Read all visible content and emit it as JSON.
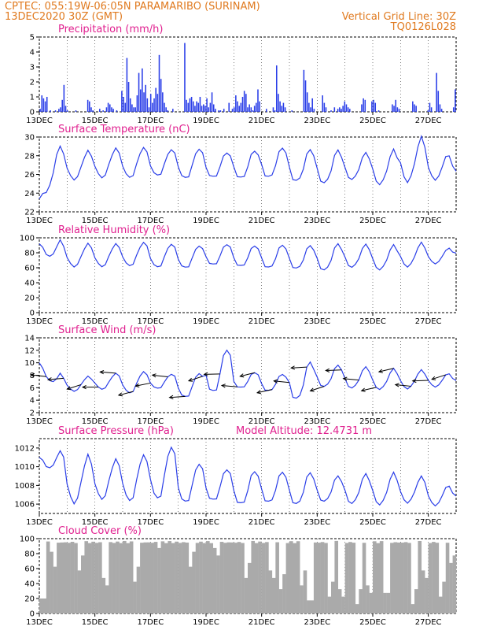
{
  "header": {
    "line1": "CPTEC:   055:19W-06:05N  PARAMARIBO (SURINAM)",
    "line2": "13DEC2020 30Z (GMT)",
    "grid_note": "Vertical Grid Line: 30Z",
    "code": "TQ0126L028"
  },
  "colors": {
    "header": "#e07a1f",
    "title": "#e0208f",
    "series": "#2a3ee8",
    "cloud": "#aaaaaa"
  },
  "chart_data": [
    {
      "id": "precip",
      "type": "bar",
      "title": "Precipitation (mm/h)",
      "ylim": [
        0,
        5
      ],
      "yticks": [
        0,
        1,
        2,
        3,
        4,
        5
      ],
      "xticks": [
        "13DEC",
        "15DEC",
        "17DEC",
        "19DEC",
        "21DEC",
        "23DEC",
        "25DEC",
        "27DEC"
      ],
      "x_start": 13.0,
      "x_end": 28.0,
      "step_days": 0.125,
      "values": [
        0.2,
        1.1,
        0.9,
        0.7,
        1.0,
        0.0,
        0.1,
        0.0,
        0.0,
        0.1,
        0.0,
        0.2,
        0.3,
        0.8,
        1.8,
        0.4,
        0.1,
        0.0,
        0.0,
        0.0,
        0.0,
        0.1,
        0.0,
        0.0,
        0.0,
        0.0,
        0.0,
        0.0,
        0.8,
        0.7,
        0.3,
        0.1,
        0.0,
        0.0,
        0.0,
        0.2,
        0.0,
        0.1,
        0.0,
        0.3,
        0.6,
        0.5,
        0.3,
        0.2,
        0.0,
        0.1,
        0.0,
        0.0,
        1.4,
        1.0,
        0.6,
        3.6,
        2.0,
        0.9,
        0.5,
        0.3,
        0.3,
        1.1,
        2.6,
        1.5,
        2.9,
        1.3,
        1.8,
        0.9,
        0.3,
        1.2,
        0.6,
        0.9,
        1.6,
        1.2,
        3.8,
        2.2,
        1.3,
        0.6,
        0.3,
        0.1,
        0.0,
        0.0,
        0.2,
        0.0,
        0.0,
        0.0,
        0.0,
        0.0,
        0.0,
        4.6,
        0.8,
        0.6,
        0.9,
        1.0,
        0.7,
        0.4,
        0.7,
        0.6,
        1.0,
        0.4,
        0.5,
        0.4,
        0.9,
        0.3,
        0.6,
        1.3,
        0.5,
        0.2,
        0.0,
        0.1,
        0.1,
        0.0,
        0.2,
        0.0,
        0.0,
        0.6,
        0.0,
        0.2,
        0.3,
        1.1,
        0.7,
        0.4,
        0.6,
        1.0,
        1.4,
        1.2,
        0.3,
        0.5,
        0.3,
        0.1,
        0.4,
        0.6,
        1.5,
        0.7,
        0.0,
        0.0,
        0.0,
        0.2,
        0.0,
        0.0,
        0.0,
        0.3,
        0.1,
        3.1,
        1.2,
        0.7,
        0.4,
        0.6,
        0.3,
        0.0,
        0.0,
        0.0,
        0.1,
        0.0,
        0.0,
        0.0,
        0.0,
        0.0,
        0.0,
        2.8,
        2.1,
        1.3,
        0.6,
        0.3,
        0.9,
        0.2,
        0.0,
        0.0,
        0.0,
        0.0,
        1.1,
        0.6,
        0.3,
        0.0,
        0.0,
        0.1,
        0.0,
        0.3,
        0.0,
        0.2,
        0.3,
        0.2,
        0.4,
        0.7,
        0.5,
        0.3,
        0.2,
        0.0,
        0.0,
        0.0,
        0.0,
        0.0,
        0.0,
        0.5,
        0.9,
        0.8,
        0.0,
        0.0,
        0.0,
        0.7,
        0.8,
        0.6,
        0.0,
        0.1,
        0.0,
        0.0,
        0.0,
        0.0,
        0.0,
        0.0,
        0.0,
        0.5,
        0.4,
        0.8,
        0.3,
        0.2,
        0.0,
        0.0,
        0.0,
        0.0,
        0.0,
        0.0,
        0.0,
        0.7,
        0.5,
        0.4,
        0.0,
        0.0,
        0.0,
        0.0,
        0.0,
        0.0,
        0.1,
        0.6,
        0.3,
        0.0,
        0.0,
        2.6,
        1.4,
        0.5,
        0.2,
        0.0,
        0.0,
        0.0,
        0.0,
        0.0,
        0.0,
        0.3,
        1.5
      ]
    },
    {
      "id": "temp",
      "type": "line",
      "title": "Surface Temperature (nC)",
      "ylim": [
        22,
        30
      ],
      "yticks": [
        22,
        24,
        26,
        28,
        30
      ],
      "xticks": [
        "13DEC",
        "15DEC",
        "17DEC",
        "19DEC",
        "21DEC",
        "23DEC",
        "25DEC",
        "27DEC"
      ],
      "x_start": 13.0,
      "x_end": 28.0,
      "peaks": [
        28.9,
        28.5,
        28.8,
        28.9,
        28.7,
        28.8,
        28.4,
        28.6,
        28.9,
        28.7,
        28.6,
        28.3,
        28.6,
        29.9,
        28.6
      ],
      "troughs": [
        25.4,
        25.5,
        25.7,
        25.7,
        25.9,
        25.6,
        25.7,
        25.6,
        25.7,
        25.3,
        25.1,
        25.5,
        25.0,
        25.3,
        25.5
      ],
      "start_value": 23.4,
      "end_value": 26.4
    },
    {
      "id": "rh",
      "type": "line",
      "title": "Relative Humidity (%)",
      "ylim": [
        0,
        100
      ],
      "yticks": [
        0,
        20,
        40,
        60,
        80,
        100
      ],
      "xticks": [
        "13DEC",
        "15DEC",
        "17DEC",
        "19DEC",
        "21DEC",
        "23DEC",
        "25DEC",
        "27DEC"
      ],
      "x_start": 13.0,
      "x_end": 28.0,
      "peaks": [
        96,
        92,
        92,
        94,
        92,
        90,
        92,
        90,
        91,
        90,
        92,
        91,
        90,
        93,
        88
      ],
      "troughs": [
        60,
        62,
        62,
        63,
        61,
        60,
        64,
        62,
        60,
        59,
        57,
        61,
        58,
        62,
        66
      ],
      "start_value": 92,
      "end_value": 80
    },
    {
      "id": "wind",
      "type": "line",
      "title": "Surface Wind (m/s)",
      "ylim": [
        2,
        14
      ],
      "yticks": [
        2,
        4,
        6,
        8,
        10,
        12,
        14
      ],
      "xticks": [
        "13DEC",
        "15DEC",
        "17DEC",
        "19DEC",
        "21DEC",
        "23DEC",
        "25DEC",
        "27DEC"
      ],
      "x_start": 13.0,
      "x_end": 28.0,
      "peaks": [
        8.2,
        7.8,
        8.3,
        8.6,
        8.2,
        8.4,
        12.3,
        8.5,
        8.2,
        10.2,
        9.6,
        9.3,
        9.0,
        8.8,
        8.6
      ],
      "troughs": [
        4.8,
        5.5,
        5.8,
        5.2,
        5.9,
        4.5,
        5.3,
        6.0,
        5.5,
        4.2,
        6.2,
        6.0,
        5.8,
        5.9,
        6.2
      ],
      "start_value": 10.0,
      "end_value": 7.2,
      "barbs_note": "wind vectors drawn as arrows along the series"
    },
    {
      "id": "pres",
      "type": "line",
      "title": "Surface Pressure (hPa)",
      "annotation": "Model Altitude: 12.4731 m",
      "ylim": [
        1005,
        1013
      ],
      "yticks": [
        1006,
        1008,
        1010,
        1012
      ],
      "xticks": [
        "13DEC",
        "15DEC",
        "17DEC",
        "19DEC",
        "21DEC",
        "23DEC",
        "25DEC",
        "27DEC"
      ],
      "x_start": 13.0,
      "x_end": 28.0,
      "peaks": [
        1011.6,
        1011.2,
        1010.8,
        1011.3,
        1012.2,
        1010.4,
        1009.8,
        1009.6,
        1009.5,
        1009.4,
        1009.0,
        1009.2,
        1009.3,
        1008.9,
        1008.3
      ],
      "troughs": [
        1008.8,
        1006.2,
        1006.6,
        1006.4,
        1006.6,
        1006.2,
        1006.4,
        1006.0,
        1006.2,
        1006.0,
        1006.3,
        1006.1,
        1006.0,
        1006.2,
        1005.9
      ],
      "start_value": 1011.0,
      "end_value": 1006.9
    },
    {
      "id": "cloud",
      "type": "area",
      "title": "Cloud Cover (%)",
      "ylim": [
        0,
        100
      ],
      "yticks": [
        0,
        20,
        40,
        60,
        80,
        100
      ],
      "xticks": [
        "13DEC",
        "15DEC",
        "17DEC",
        "19DEC",
        "21DEC",
        "23DEC",
        "25DEC",
        "27DEC"
      ],
      "x_start": 13.0,
      "x_end": 28.0,
      "typical_value": 97,
      "dips": [
        {
          "day": 13.55,
          "value": 60
        },
        {
          "day": 14.45,
          "value": 55
        },
        {
          "day": 15.4,
          "value": 30
        },
        {
          "day": 16.45,
          "value": 40
        },
        {
          "day": 17.35,
          "value": 80
        },
        {
          "day": 18.45,
          "value": 60
        },
        {
          "day": 19.4,
          "value": 70
        },
        {
          "day": 20.45,
          "value": 45
        },
        {
          "day": 21.4,
          "value": 40
        },
        {
          "day": 21.7,
          "value": 30
        },
        {
          "day": 22.45,
          "value": 35
        },
        {
          "day": 22.75,
          "value": 5
        },
        {
          "day": 23.45,
          "value": 20
        },
        {
          "day": 23.9,
          "value": 15
        },
        {
          "day": 24.45,
          "value": 10
        },
        {
          "day": 24.9,
          "value": 20
        },
        {
          "day": 25.5,
          "value": 15
        },
        {
          "day": 26.45,
          "value": 10
        },
        {
          "day": 26.9,
          "value": 40
        },
        {
          "day": 27.45,
          "value": 20
        },
        {
          "day": 27.85,
          "value": 60
        }
      ]
    }
  ]
}
